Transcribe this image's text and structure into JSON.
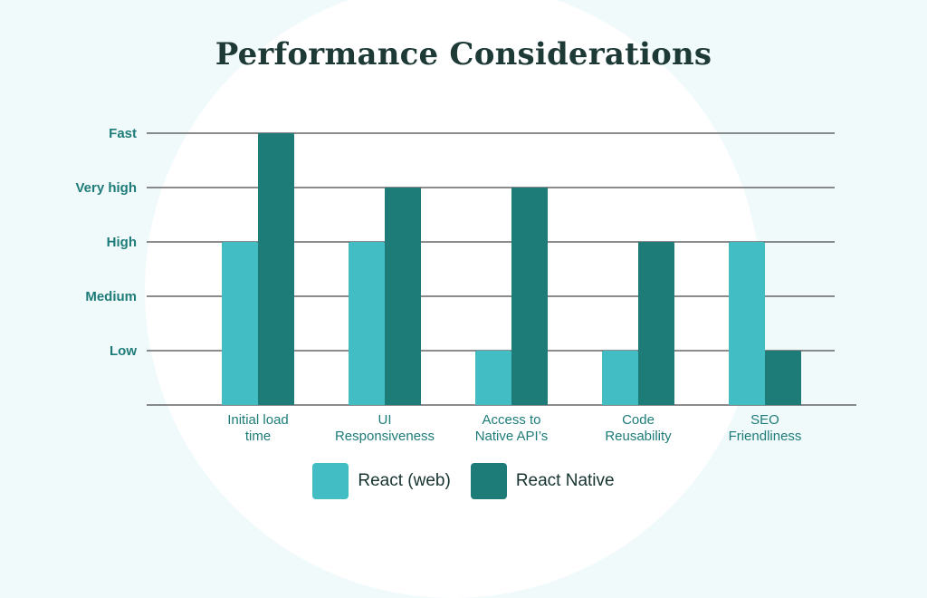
{
  "chart_data": {
    "type": "bar",
    "title": "Performance Considerations",
    "xlabel": "",
    "ylabel": "",
    "categories": [
      "Initial load\ntime",
      "UI\nResponsiveness",
      "Access to\nNative API’s",
      "Code\nReusability",
      "SEO\nFriendliness"
    ],
    "y_levels": [
      "Low",
      "Medium",
      "High",
      "Very high",
      "Fast"
    ],
    "ylim": [
      0,
      5
    ],
    "series": [
      {
        "name": "React (web)",
        "values": [
          3,
          3,
          1,
          1,
          3
        ],
        "color": "#43bdc4"
      },
      {
        "name": "React Native",
        "values": [
          5,
          4,
          4,
          3,
          1
        ],
        "color": "#1e7c78"
      }
    ],
    "grid": true,
    "legend_position": "bottom-center"
  }
}
